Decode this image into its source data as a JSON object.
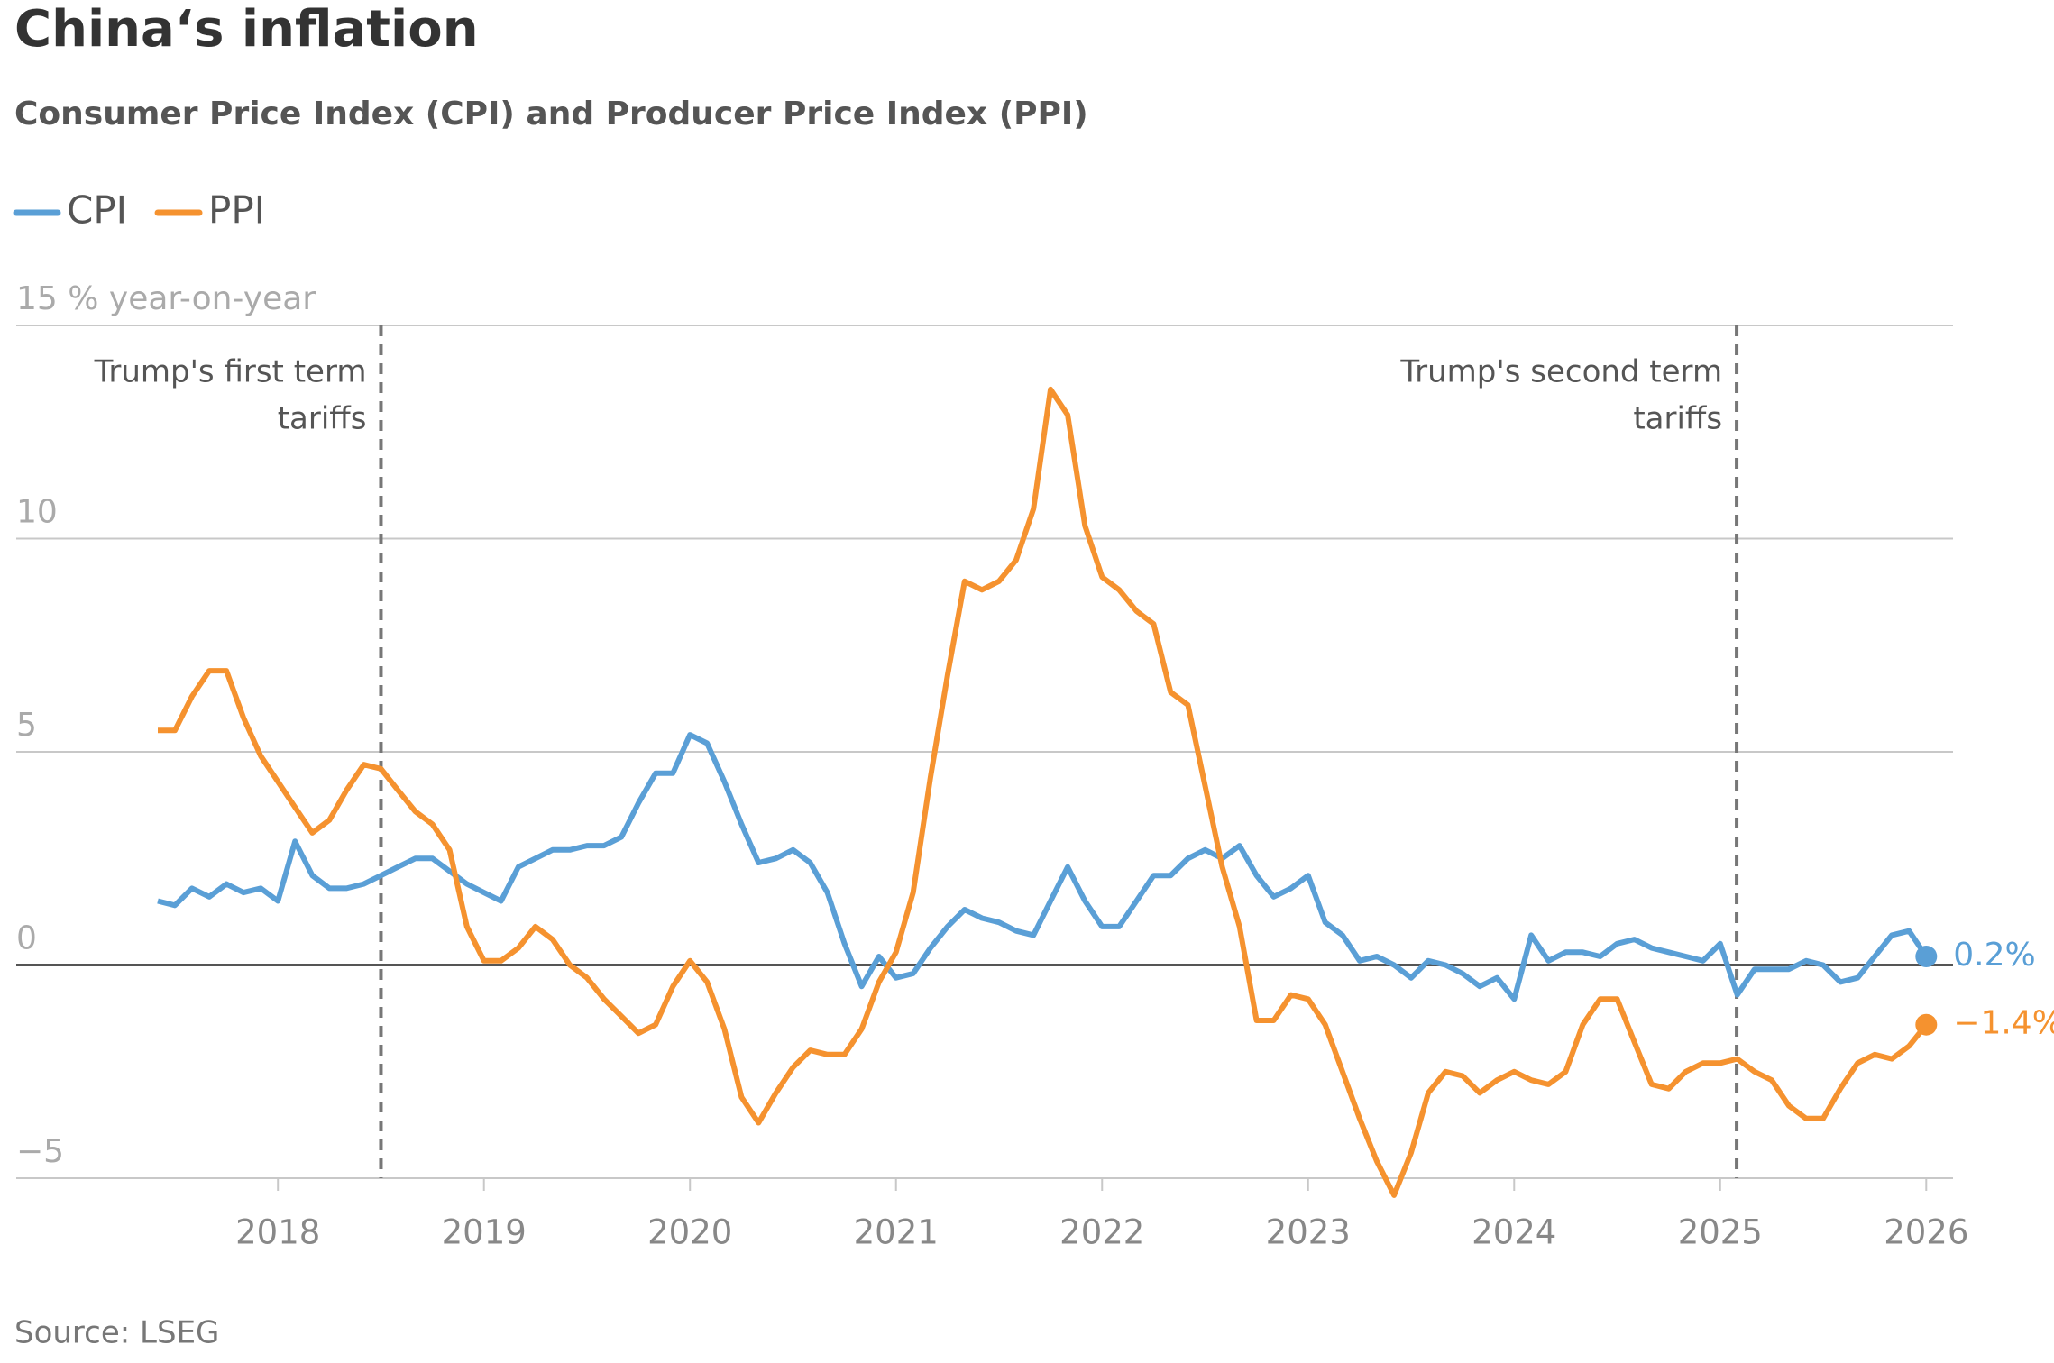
{
  "chart_data": {
    "type": "line",
    "title": "China‘s inflation",
    "subtitle": "Consumer Price Index (CPI) and Producer Price Index (PPI)",
    "source": "Source: LSEG",
    "x": [
      2017.417,
      2017.5,
      2017.583,
      2017.667,
      2017.75,
      2017.833,
      2017.917,
      2018,
      2018.083,
      2018.167,
      2018.25,
      2018.333,
      2018.417,
      2018.5,
      2018.583,
      2018.667,
      2018.75,
      2018.833,
      2018.917,
      2019,
      2019.083,
      2019.167,
      2019.25,
      2019.333,
      2019.417,
      2019.5,
      2019.583,
      2019.667,
      2019.75,
      2019.833,
      2019.917,
      2020,
      2020.083,
      2020.167,
      2020.25,
      2020.333,
      2020.417,
      2020.5,
      2020.583,
      2020.667,
      2020.75,
      2020.833,
      2020.917,
      2021,
      2021.083,
      2021.167,
      2021.25,
      2021.333,
      2021.417,
      2021.5,
      2021.583,
      2021.667,
      2021.75,
      2021.833,
      2021.917,
      2022,
      2022.083,
      2022.167,
      2022.25,
      2022.333,
      2022.417,
      2022.5,
      2022.583,
      2022.667,
      2022.75,
      2022.833,
      2022.917,
      2023,
      2023.083,
      2023.167,
      2023.25,
      2023.333,
      2023.417,
      2023.5,
      2023.583,
      2023.667,
      2023.75,
      2023.833,
      2023.917,
      2024,
      2024.083,
      2024.167,
      2024.25,
      2024.333,
      2024.417,
      2024.5,
      2024.583,
      2024.667,
      2024.75,
      2024.833,
      2024.917,
      2025,
      2025.083,
      2025.167,
      2025.25,
      2025.333,
      2025.417,
      2025.5,
      2025.583,
      2025.667,
      2025.75,
      2025.833,
      2025.917,
      2026
    ],
    "series": [
      {
        "name": "CPI",
        "color": "#5a9fd6",
        "values": [
          1.5,
          1.4,
          1.8,
          1.6,
          1.9,
          1.7,
          1.8,
          1.5,
          2.9,
          2.1,
          1.8,
          1.8,
          1.9,
          2.1,
          2.3,
          2.5,
          2.5,
          2.2,
          1.9,
          1.7,
          1.5,
          2.3,
          2.5,
          2.7,
          2.7,
          2.8,
          2.8,
          3.0,
          3.8,
          4.5,
          4.5,
          5.4,
          5.2,
          4.3,
          3.3,
          2.4,
          2.5,
          2.7,
          2.4,
          1.7,
          0.5,
          -0.5,
          0.2,
          -0.3,
          -0.2,
          0.4,
          0.9,
          1.3,
          1.1,
          1.0,
          0.8,
          0.7,
          1.5,
          2.3,
          1.5,
          0.9,
          0.9,
          1.5,
          2.1,
          2.1,
          2.5,
          2.7,
          2.5,
          2.8,
          2.1,
          1.6,
          1.8,
          2.1,
          1.0,
          0.7,
          0.1,
          0.2,
          0.0,
          -0.3,
          0.1,
          0.0,
          -0.2,
          -0.5,
          -0.3,
          -0.8,
          0.7,
          0.1,
          0.3,
          0.3,
          0.2,
          0.5,
          0.6,
          0.4,
          0.3,
          0.2,
          0.1,
          0.5,
          -0.7,
          -0.1,
          -0.1,
          -0.1,
          0.1,
          0.0,
          -0.4,
          -0.3,
          0.2,
          0.7,
          0.8,
          0.2
        ],
        "value_labels": [
          null,
          null,
          null,
          null,
          null,
          null,
          null,
          null,
          null,
          null,
          null,
          null,
          null,
          null,
          null,
          null,
          null,
          null,
          null,
          null,
          null,
          null,
          null,
          null,
          null,
          null,
          null,
          null,
          null,
          null,
          null,
          null,
          null,
          null,
          null,
          null,
          null,
          null,
          null,
          null,
          null,
          null,
          null,
          null,
          null,
          null,
          null,
          null,
          null,
          null,
          null,
          null,
          null,
          null,
          null,
          null,
          null,
          null,
          null,
          null,
          null,
          null,
          null,
          null,
          null,
          null,
          null,
          null,
          null,
          null,
          null,
          null,
          null,
          null,
          null,
          null,
          null,
          null,
          null,
          null,
          null,
          null,
          null,
          null,
          null,
          null,
          null,
          null,
          null,
          null,
          null,
          null,
          null,
          null,
          null,
          null,
          null,
          null,
          null,
          null,
          null,
          null,
          null,
          "0.2%"
        ]
      },
      {
        "name": "PPI",
        "color": "#f5922f",
        "values": [
          5.5,
          5.5,
          6.3,
          6.9,
          6.9,
          5.8,
          4.9,
          4.3,
          3.7,
          3.1,
          3.4,
          4.1,
          4.7,
          4.6,
          4.1,
          3.6,
          3.3,
          2.7,
          0.9,
          0.1,
          0.1,
          0.4,
          0.9,
          0.6,
          0.0,
          -0.3,
          -0.8,
          -1.2,
          -1.6,
          -1.4,
          -0.5,
          0.1,
          -0.4,
          -1.5,
          -3.1,
          -3.7,
          -3.0,
          -2.4,
          -2.0,
          -2.1,
          -2.1,
          -1.5,
          -0.4,
          0.3,
          1.7,
          4.4,
          6.8,
          9.0,
          8.8,
          9.0,
          9.5,
          10.7,
          13.5,
          12.9,
          10.3,
          9.1,
          8.8,
          8.3,
          8.0,
          6.4,
          6.1,
          4.2,
          2.3,
          0.9,
          -1.3,
          -1.3,
          -0.7,
          -0.8,
          -1.4,
          -2.5,
          -3.6,
          -4.6,
          -5.4,
          -4.4,
          -3.0,
          -2.5,
          -2.6,
          -3.0,
          -2.7,
          -2.5,
          -2.7,
          -2.8,
          -2.5,
          -1.4,
          -0.8,
          -0.8,
          -1.8,
          -2.8,
          -2.9,
          -2.5,
          -2.3,
          -2.3,
          -2.2,
          -2.5,
          -2.7,
          -3.3,
          -3.6,
          -3.6,
          -2.9,
          -2.3,
          -2.1,
          -2.2,
          -1.9,
          -1.4
        ],
        "value_labels": [
          null,
          null,
          null,
          null,
          null,
          null,
          null,
          null,
          null,
          null,
          null,
          null,
          null,
          null,
          null,
          null,
          null,
          null,
          null,
          null,
          null,
          null,
          null,
          null,
          null,
          null,
          null,
          null,
          null,
          null,
          null,
          null,
          null,
          null,
          null,
          null,
          null,
          null,
          null,
          null,
          null,
          null,
          null,
          null,
          null,
          null,
          null,
          null,
          null,
          null,
          null,
          null,
          null,
          null,
          null,
          null,
          null,
          null,
          null,
          null,
          null,
          null,
          null,
          null,
          null,
          null,
          null,
          null,
          null,
          null,
          null,
          null,
          null,
          null,
          null,
          null,
          null,
          null,
          null,
          null,
          null,
          null,
          null,
          null,
          null,
          null,
          null,
          null,
          null,
          null,
          null,
          null,
          null,
          null,
          null,
          null,
          null,
          null,
          null,
          null,
          null,
          null,
          null,
          "−1.4%"
        ]
      }
    ],
    "xlim": [
      2016.73,
      2026.13
    ],
    "xticks": [
      2018,
      2019,
      2020,
      2021,
      2022,
      2023,
      2024,
      2025,
      2026
    ],
    "ylim": [
      -5,
      15
    ],
    "yticks": [
      {
        "value": -5,
        "label": "−5"
      },
      0,
      5,
      10,
      {
        "value": 15,
        "label": "15 % year-on-year"
      }
    ],
    "grid": true,
    "legend": "top-left",
    "annotations": [
      {
        "lines": [
          "Trump's first term",
          "tariffs"
        ],
        "x": 2018.5
      },
      {
        "lines": [
          "Trump's second term",
          "tariffs"
        ],
        "x": 2025.08
      }
    ]
  }
}
